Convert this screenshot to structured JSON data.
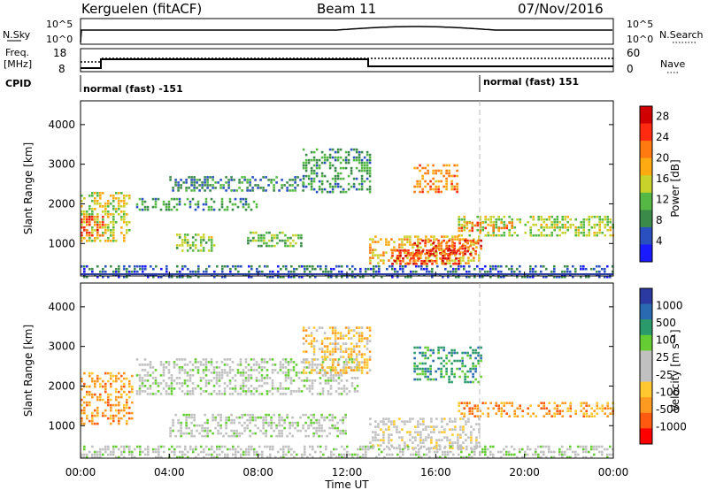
{
  "header": {
    "site": "Kerguelen (fitACF)",
    "beam": "Beam 11",
    "date": "07/Nov/2016"
  },
  "top_panels": {
    "nsky_label": "N.Sky",
    "nsearch_label": "N.Search",
    "freq_label_1": "Freq.",
    "freq_label_2": "[MHz]",
    "nave_label": "Nave",
    "cpid_label": "CPID",
    "nsky_ticks": [
      "10^5",
      "10^0"
    ],
    "nsearch_ticks": [
      "10^5",
      "10^0"
    ],
    "freq_ticks": [
      "18",
      "8"
    ],
    "nave_ticks": [
      "60",
      "0"
    ],
    "cpid_segments": [
      {
        "label": "normal (fast) -151",
        "start_hour": 0
      },
      {
        "label": "normal (fast) 151",
        "start_hour": 18
      }
    ]
  },
  "colors": {
    "power": [
      "#1a1aff",
      "#2a50c0",
      "#3c8a4a",
      "#55b845",
      "#c8d22a",
      "#ffaa10",
      "#ff7a10",
      "#ff2a10",
      "#d00000"
    ],
    "velocity": [
      "#ff0000",
      "#ff5a10",
      "#ff9a20",
      "#ffc830",
      "#c0c0c0",
      "#c0c0c0",
      "#66cc33",
      "#2a9a6a",
      "#2a6ab0",
      "#2a3aa0"
    ]
  },
  "chart_data": [
    {
      "type": "heatmap",
      "name": "power",
      "x_range_hours": [
        0,
        24
      ],
      "xticks": [
        "00:00",
        "04:00",
        "08:00",
        "12:00",
        "16:00",
        "20:00",
        "00:00"
      ],
      "ylabel": "Slant Range [km]",
      "ylim": [
        180,
        4600
      ],
      "yticks": [
        1000,
        2000,
        3000,
        4000
      ],
      "colorbar_label": "Power [dB]",
      "colorbar_ticks": [
        4,
        8,
        12,
        16,
        20,
        24,
        28
      ],
      "colorbar_range": [
        0,
        30
      ],
      "echo_regions": [
        {
          "t0": 0.0,
          "t1": 2.2,
          "r0": 1050,
          "r1": 2300,
          "v": 15
        },
        {
          "t0": 0.0,
          "t1": 1.0,
          "r0": 1200,
          "r1": 1700,
          "v": 23
        },
        {
          "t0": 2.5,
          "t1": 8.0,
          "r0": 1850,
          "r1": 2150,
          "v": 9
        },
        {
          "t0": 4.3,
          "t1": 6.0,
          "r0": 800,
          "r1": 1250,
          "v": 13
        },
        {
          "t0": 4.0,
          "t1": 10.0,
          "r0": 2350,
          "r1": 2700,
          "v": 8
        },
        {
          "t0": 7.5,
          "t1": 10.0,
          "r0": 900,
          "r1": 1300,
          "v": 11
        },
        {
          "t0": 10.0,
          "t1": 13.0,
          "r0": 2300,
          "r1": 3400,
          "v": 9
        },
        {
          "t0": 13.0,
          "t1": 18.0,
          "r0": 500,
          "r1": 1200,
          "v": 18
        },
        {
          "t0": 14.0,
          "t1": 17.0,
          "r0": 500,
          "r1": 850,
          "v": 26
        },
        {
          "t0": 15.0,
          "t1": 17.0,
          "r0": 2300,
          "r1": 3000,
          "v": 20
        },
        {
          "t0": 15.0,
          "t1": 18.0,
          "r0": 700,
          "r1": 1100,
          "v": 25
        },
        {
          "t0": 17.0,
          "t1": 24.0,
          "r0": 1200,
          "r1": 1700,
          "v": 14
        },
        {
          "t0": 17.0,
          "t1": 19.5,
          "r0": 1300,
          "r1": 1550,
          "v": 21
        },
        {
          "t0": 0.0,
          "t1": 24.0,
          "r0": 180,
          "r1": 450,
          "v": 6
        }
      ]
    },
    {
      "type": "heatmap",
      "name": "velocity",
      "x_range_hours": [
        0,
        24
      ],
      "xticks": [
        "00:00",
        "04:00",
        "08:00",
        "12:00",
        "16:00",
        "20:00",
        "00:00"
      ],
      "xlabel": "Time UT",
      "ylabel": "Slant Range [km]",
      "ylim": [
        180,
        4600
      ],
      "yticks": [
        1000,
        2000,
        3000,
        4000
      ],
      "colorbar_label": "Velocity [m s⁻¹]",
      "colorbar_ticks": [
        "1000",
        "500",
        "100",
        "25",
        "-25",
        "-100",
        "-500",
        "-1000"
      ],
      "echo_regions": [
        {
          "t0": 0.0,
          "t1": 2.3,
          "r0": 1050,
          "r1": 2350,
          "v": 2
        },
        {
          "t0": 2.5,
          "t1": 12.5,
          "r0": 1800,
          "r1": 2700,
          "v": 5
        },
        {
          "t0": 4.0,
          "t1": 12.0,
          "r0": 700,
          "r1": 1300,
          "v": 5
        },
        {
          "t0": 10.0,
          "t1": 13.0,
          "r0": 2300,
          "r1": 3500,
          "v": 3
        },
        {
          "t0": 13.0,
          "t1": 18.0,
          "r0": 400,
          "r1": 1200,
          "v": 4
        },
        {
          "t0": 15.0,
          "t1": 18.0,
          "r0": 2100,
          "r1": 3000,
          "v": 7
        },
        {
          "t0": 17.0,
          "t1": 24.0,
          "r0": 1200,
          "r1": 1600,
          "v": 2
        },
        {
          "t0": 0.0,
          "t1": 24.0,
          "r0": 180,
          "r1": 500,
          "v": 5
        }
      ]
    }
  ]
}
